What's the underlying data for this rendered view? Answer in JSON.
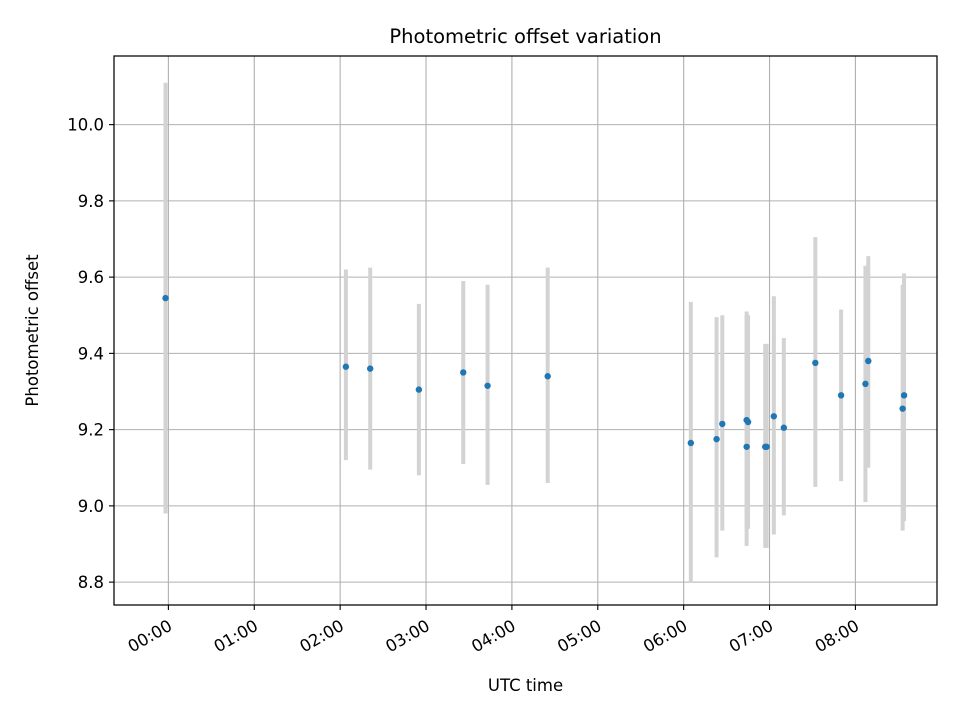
{
  "chart_data": {
    "type": "scatter",
    "title": "Photometric offset variation",
    "xlabel": "UTC time",
    "ylabel": "Photometric offset",
    "x_unit": "UTC time (HH:MM)",
    "xlim": [
      "23:22",
      "08:57"
    ],
    "ylim": [
      8.74,
      10.18
    ],
    "xticks": [
      "00:00",
      "01:00",
      "02:00",
      "03:00",
      "04:00",
      "05:00",
      "06:00",
      "07:00",
      "08:00"
    ],
    "yticks": [
      8.8,
      9.0,
      9.2,
      9.4,
      9.6,
      9.8,
      10.0
    ],
    "ytick_labels": [
      "8.8",
      "9.0",
      "9.2",
      "9.4",
      "9.6",
      "9.8",
      "10.0"
    ],
    "grid": true,
    "marker_color": "#1f77b4",
    "errorbar_color": "#d3d3d3",
    "series": [
      {
        "points": [
          {
            "x": "23:58",
            "y": 9.545,
            "ylow": 8.98,
            "yhigh": 10.11
          },
          {
            "x": "02:04",
            "y": 9.365,
            "ylow": 9.12,
            "yhigh": 9.62
          },
          {
            "x": "02:21",
            "y": 9.36,
            "ylow": 9.095,
            "yhigh": 9.625
          },
          {
            "x": "02:55",
            "y": 9.305,
            "ylow": 9.08,
            "yhigh": 9.53
          },
          {
            "x": "03:26",
            "y": 9.35,
            "ylow": 9.11,
            "yhigh": 9.59
          },
          {
            "x": "03:43",
            "y": 9.315,
            "ylow": 9.055,
            "yhigh": 9.58
          },
          {
            "x": "04:25",
            "y": 9.34,
            "ylow": 9.06,
            "yhigh": 9.625
          },
          {
            "x": "06:05",
            "y": 9.165,
            "ylow": 8.8,
            "yhigh": 9.535
          },
          {
            "x": "06:23",
            "y": 9.175,
            "ylow": 8.865,
            "yhigh": 9.495
          },
          {
            "x": "06:27",
            "y": 9.215,
            "ylow": 8.935,
            "yhigh": 9.5
          },
          {
            "x": "06:44",
            "y": 9.155,
            "ylow": 8.895,
            "yhigh": 9.51
          },
          {
            "x": "06:44",
            "y": 9.225,
            "ylow": 8.945,
            "yhigh": 9.5
          },
          {
            "x": "06:45",
            "y": 9.22,
            "ylow": 8.94,
            "yhigh": 9.5
          },
          {
            "x": "06:57",
            "y": 9.155,
            "ylow": 8.89,
            "yhigh": 9.425
          },
          {
            "x": "06:58",
            "y": 9.155,
            "ylow": 8.89,
            "yhigh": 9.425
          },
          {
            "x": "07:03",
            "y": 9.235,
            "ylow": 8.925,
            "yhigh": 9.55
          },
          {
            "x": "07:10",
            "y": 9.205,
            "ylow": 8.975,
            "yhigh": 9.44
          },
          {
            "x": "07:32",
            "y": 9.375,
            "ylow": 9.05,
            "yhigh": 9.705
          },
          {
            "x": "07:50",
            "y": 9.29,
            "ylow": 9.065,
            "yhigh": 9.515
          },
          {
            "x": "08:07",
            "y": 9.32,
            "ylow": 9.01,
            "yhigh": 9.63
          },
          {
            "x": "08:09",
            "y": 9.38,
            "ylow": 9.1,
            "yhigh": 9.655
          },
          {
            "x": "08:33",
            "y": 9.255,
            "ylow": 8.935,
            "yhigh": 9.58
          },
          {
            "x": "08:34",
            "y": 9.29,
            "ylow": 8.96,
            "yhigh": 9.61
          }
        ]
      }
    ]
  }
}
